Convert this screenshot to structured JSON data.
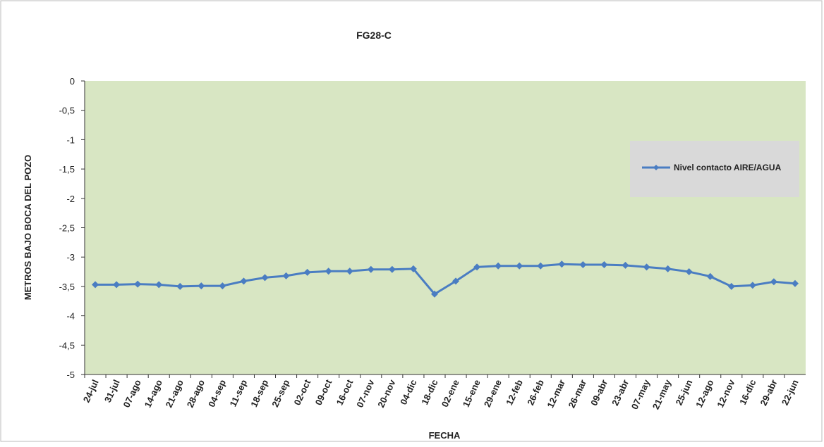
{
  "chart_data": {
    "type": "line",
    "title": "FG28-C",
    "x_label": "FECHA",
    "y_label": "METROS BAJO BOCA DEL POZO",
    "categories": [
      "24-jul",
      "31-jul",
      "07-ago",
      "14-ago",
      "21-ago",
      "28-ago",
      "04-sep",
      "11-sep",
      "18-sep",
      "25-sep",
      "02-oct",
      "09-oct",
      "16-oct",
      "07-nov",
      "20-nov",
      "04-dic",
      "18-dic",
      "02-ene",
      "15-ene",
      "29-ene",
      "12-feb",
      "26-feb",
      "12-mar",
      "26-mar",
      "09-abr",
      "23-abr",
      "07-may",
      "21-may",
      "25-jun",
      "12-ago",
      "12-nov",
      "16-dic",
      "29-abr",
      "22-jun"
    ],
    "series": [
      {
        "name": "Nivel contacto AIRE/AGUA",
        "color": "#4a7dc2",
        "values": [
          -3.47,
          -3.47,
          -3.46,
          -3.47,
          -3.5,
          -3.49,
          -3.49,
          -3.41,
          -3.35,
          -3.32,
          -3.26,
          -3.24,
          -3.24,
          -3.21,
          -3.21,
          -3.2,
          -3.63,
          -3.41,
          -3.17,
          -3.15,
          -3.15,
          -3.15,
          -3.12,
          -3.13,
          -3.13,
          -3.14,
          -3.17,
          -3.2,
          -3.25,
          -3.33,
          -3.5,
          -3.48,
          -3.42,
          -3.45
        ]
      }
    ],
    "ylim": [
      -5,
      0
    ],
    "yticks": [
      0,
      {
        "value": -0.5,
        "label": "-0,5"
      },
      -1,
      {
        "value": -1.5,
        "label": "-1,5"
      },
      -2,
      {
        "value": -2.5,
        "label": "-2,5"
      },
      -3,
      {
        "value": -3.5,
        "label": "-3,5"
      },
      -4,
      {
        "value": -4.5,
        "label": "-4,5"
      },
      -5
    ],
    "plot_background": "#d8e6c3",
    "legend_position": "right"
  }
}
